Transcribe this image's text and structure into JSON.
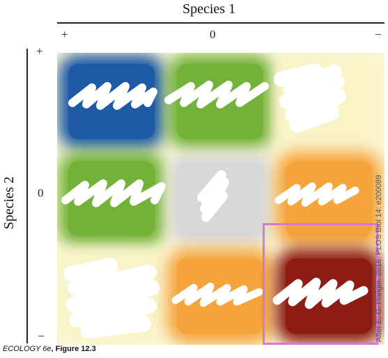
{
  "axes": {
    "x_title": "Species 1",
    "y_title": "Species 2",
    "x_signs": [
      "+",
      "0",
      "−"
    ],
    "y_signs": [
      "+",
      "0",
      "−"
    ]
  },
  "cells": [
    {
      "row": 0,
      "col": 0,
      "color": "#1e5aa6",
      "label": ""
    },
    {
      "row": 0,
      "col": 1,
      "color": "#73b239",
      "label": ""
    },
    {
      "row": 0,
      "col": 2,
      "color": "#faf3c8",
      "label": ""
    },
    {
      "row": 1,
      "col": 0,
      "color": "#73b239",
      "label": ""
    },
    {
      "row": 1,
      "col": 1,
      "color": "#d7d9d9",
      "label": ""
    },
    {
      "row": 1,
      "col": 2,
      "color": "#f5a43c",
      "label": ""
    },
    {
      "row": 2,
      "col": 0,
      "color": "#faf3c8",
      "label": ""
    },
    {
      "row": 2,
      "col": 1,
      "color": "#f5a43c",
      "label": ""
    },
    {
      "row": 2,
      "col": 2,
      "color": "#8c1c14",
      "label": ""
    }
  ],
  "credit": "After E. G. Pringle. 2016. PLOS Biol 14: e200089",
  "figure_label": {
    "book": "ECOLOGY 6e",
    "figure": ", Figure 12.3"
  },
  "highlight_color": "#d47ad0"
}
